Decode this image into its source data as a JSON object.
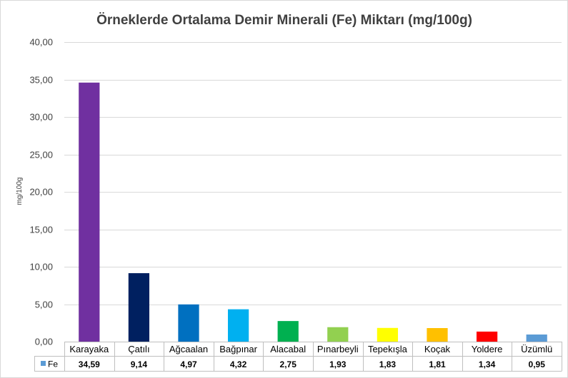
{
  "chart_data": {
    "type": "bar",
    "title": "Örneklerde Ortalama Demir Minerali (Fe) Miktarı (mg/100g)",
    "ylabel": "mg/100g",
    "xlabel": "",
    "ylim": [
      0,
      40
    ],
    "ytick_step": 5,
    "ytick_labels": [
      "0,00",
      "5,00",
      "10,00",
      "15,00",
      "20,00",
      "25,00",
      "30,00",
      "35,00",
      "40,00"
    ],
    "grid": true,
    "legend": "data-table",
    "categories": [
      "Karayaka",
      "Çatılı",
      "Ağcaalan",
      "Bağpınar",
      "Alacabal",
      "Pınarbeyli",
      "Tepekışla",
      "Koçak",
      "Yoldere",
      "Üzümlü"
    ],
    "series": [
      {
        "name": "Fe",
        "values": [
          34.59,
          9.14,
          4.97,
          4.32,
          2.75,
          1.93,
          1.83,
          1.81,
          1.34,
          0.95
        ],
        "labels": [
          "34,59",
          "9,14",
          "4,97",
          "4,32",
          "2,75",
          "1,93",
          "1,83",
          "1,81",
          "1,34",
          "0,95"
        ],
        "legend_key_color": "#5b9bd5"
      }
    ],
    "bar_colors": [
      "#7030a0",
      "#002060",
      "#0070c0",
      "#00b0f0",
      "#00b050",
      "#92d050",
      "#ffff00",
      "#ffc000",
      "#ff0000",
      "#5b9bd5"
    ]
  }
}
